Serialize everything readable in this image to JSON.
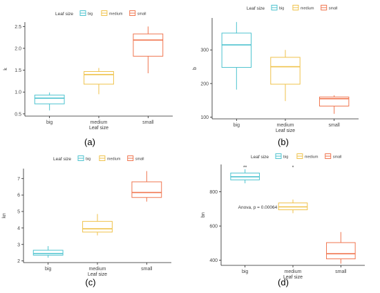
{
  "legend": {
    "title": "Leaf size",
    "entries": [
      {
        "label": "big",
        "color": "#4DC3CF"
      },
      {
        "label": "medium",
        "color": "#EFC24A"
      },
      {
        "label": "small",
        "color": "#F0754E"
      }
    ]
  },
  "chart_data": [
    {
      "type": "box",
      "panel_label": "(a)",
      "xlabel": "Leaf size",
      "ylabel": "k",
      "categories": [
        "big",
        "medium",
        "small"
      ],
      "ylim": [
        0.45,
        2.6
      ],
      "yticks": [
        0.5,
        1.0,
        1.5,
        2.0,
        2.5
      ],
      "ytick_labels": [
        "0.5",
        "1.0",
        "1.5",
        "2.0",
        "2.5"
      ],
      "boxes": [
        {
          "category": "big",
          "min": 0.58,
          "q1": 0.73,
          "median": 0.86,
          "q3": 0.93,
          "max": 0.99,
          "color": "#4DC3CF"
        },
        {
          "category": "medium",
          "min": 0.95,
          "q1": 1.18,
          "median": 1.4,
          "q3": 1.47,
          "max": 1.55,
          "color": "#EFC24A"
        },
        {
          "category": "small",
          "min": 1.43,
          "q1": 1.82,
          "median": 2.19,
          "q3": 2.33,
          "max": 2.5,
          "color": "#F0754E"
        }
      ],
      "grid": false,
      "legend_position": "top-left"
    },
    {
      "type": "box",
      "panel_label": "(b)",
      "xlabel": "Leaf size",
      "ylabel": "b",
      "categories": [
        "big",
        "medium",
        "small"
      ],
      "ylim": [
        95,
        395
      ],
      "yticks": [
        100,
        200,
        300
      ],
      "ytick_labels": [
        "100",
        "200",
        "300"
      ],
      "boxes": [
        {
          "category": "big",
          "min": 182,
          "q1": 248,
          "median": 315,
          "q3": 350,
          "max": 383,
          "color": "#4DC3CF"
        },
        {
          "category": "medium",
          "min": 148,
          "q1": 198,
          "median": 250,
          "q3": 278,
          "max": 300,
          "color": "#EFC24A"
        },
        {
          "category": "small",
          "min": 110,
          "q1": 133,
          "median": 155,
          "q3": 160,
          "max": 165,
          "color": "#F0754E"
        }
      ],
      "grid": false,
      "legend_position": "top-left"
    },
    {
      "type": "box",
      "panel_label": "(c)",
      "xlabel": "Leaf size",
      "ylabel": "kn",
      "categories": [
        "big",
        "medium",
        "small"
      ],
      "ylim": [
        1.9,
        7.6
      ],
      "yticks": [
        2,
        3,
        4,
        5,
        6,
        7
      ],
      "ytick_labels": [
        "2",
        "3",
        "4",
        "5",
        "6",
        "7"
      ],
      "boxes": [
        {
          "category": "big",
          "min": 2.2,
          "q1": 2.35,
          "median": 2.45,
          "q3": 2.65,
          "max": 2.9,
          "color": "#4DC3CF"
        },
        {
          "category": "medium",
          "min": 3.55,
          "q1": 3.75,
          "median": 3.95,
          "q3": 4.4,
          "max": 4.85,
          "color": "#EFC24A"
        },
        {
          "category": "small",
          "min": 5.6,
          "q1": 5.85,
          "median": 6.15,
          "q3": 6.8,
          "max": 7.45,
          "color": "#F0754E"
        }
      ],
      "grid": false,
      "legend_position": "top-left"
    },
    {
      "type": "box",
      "panel_label": "(d)",
      "xlabel": "Leaf size",
      "ylabel": "bn",
      "categories": [
        "big",
        "medium",
        "small"
      ],
      "ylim": [
        370,
        960
      ],
      "yticks": [
        400,
        600,
        800
      ],
      "ytick_labels": [
        "400",
        "600",
        "800"
      ],
      "boxes": [
        {
          "category": "big",
          "min": 850,
          "q1": 870,
          "median": 888,
          "q3": 910,
          "max": 932,
          "color": "#4DC3CF"
        },
        {
          "category": "medium",
          "min": 675,
          "q1": 695,
          "median": 712,
          "q3": 735,
          "max": 755,
          "color": "#EFC24A"
        },
        {
          "category": "small",
          "min": 380,
          "q1": 408,
          "median": 438,
          "q3": 503,
          "max": 565,
          "color": "#F0754E"
        }
      ],
      "annotations": [
        {
          "text": "**",
          "category": "big",
          "y": 945
        },
        {
          "text": "*",
          "category": "medium",
          "y": 945
        },
        {
          "text": "Anova, p = 0.00064",
          "x_category": "big",
          "y": 712
        }
      ],
      "grid": false,
      "legend_position": "top-left"
    }
  ]
}
